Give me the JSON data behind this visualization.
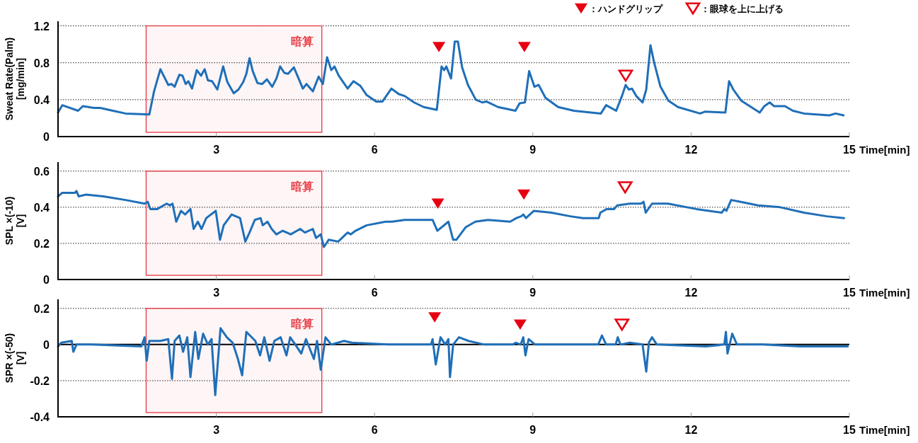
{
  "chart_data": [
    {
      "type": "line",
      "ylabel": "Sweat Rate(Palm) [mg/min]",
      "xlabel": "Time[min]",
      "xlim": [
        0,
        15
      ],
      "xticks": [
        3,
        6,
        9,
        12,
        15
      ],
      "ylim": [
        0,
        1.25
      ],
      "yticks": [
        0,
        0.4,
        0.8,
        1.2
      ],
      "grid": "y",
      "legend": "top right",
      "bands": [
        {
          "axis": "x",
          "from": 1.67,
          "to": 5.0,
          "label": "暗算",
          "color": "#e8414a"
        }
      ],
      "series": [
        {
          "type": "line",
          "color": "#1f6fb8",
          "x": [
            0.0,
            0.08,
            0.38,
            0.47,
            0.68,
            0.8,
            1.04,
            1.28,
            1.73,
            1.82,
            1.94,
            2.09,
            2.15,
            2.21,
            2.3,
            2.36,
            2.42,
            2.47,
            2.54,
            2.63,
            2.71,
            2.78,
            2.84,
            2.92,
            3.02,
            3.13,
            3.21,
            3.33,
            3.42,
            3.51,
            3.57,
            3.63,
            3.69,
            3.78,
            3.87,
            3.96,
            4.06,
            4.14,
            4.21,
            4.29,
            4.36,
            4.47,
            4.56,
            4.64,
            4.71,
            4.83,
            4.94,
            5.02,
            5.1,
            5.18,
            5.24,
            5.32,
            5.49,
            5.6,
            5.73,
            5.85,
            6.03,
            6.15,
            6.32,
            6.46,
            6.57,
            6.75,
            6.93,
            7.18,
            7.27,
            7.32,
            7.36,
            7.45,
            7.52,
            7.58,
            7.66,
            7.77,
            7.92,
            8.04,
            8.12,
            8.34,
            8.67,
            8.75,
            8.85,
            8.93,
            9.03,
            9.11,
            9.24,
            9.48,
            9.78,
            10.29,
            10.39,
            10.58,
            10.69,
            10.76,
            10.82,
            10.88,
            10.96,
            11.08,
            11.15,
            11.23,
            11.3,
            11.42,
            11.57,
            11.75,
            12.17,
            12.26,
            12.65,
            12.72,
            12.8,
            12.95,
            13.3,
            13.39,
            13.49,
            13.57,
            13.78,
            13.93,
            14.14,
            14.62,
            14.74,
            14.89
          ],
          "values": [
            0.26,
            0.34,
            0.28,
            0.33,
            0.31,
            0.31,
            0.28,
            0.25,
            0.24,
            0.49,
            0.73,
            0.56,
            0.57,
            0.54,
            0.67,
            0.66,
            0.57,
            0.6,
            0.52,
            0.72,
            0.66,
            0.73,
            0.61,
            0.6,
            0.51,
            0.76,
            0.59,
            0.47,
            0.51,
            0.59,
            0.68,
            0.85,
            0.71,
            0.58,
            0.57,
            0.62,
            0.54,
            0.63,
            0.76,
            0.69,
            0.68,
            0.75,
            0.63,
            0.52,
            0.57,
            0.49,
            0.65,
            0.57,
            0.86,
            0.72,
            0.76,
            0.66,
            0.52,
            0.6,
            0.55,
            0.45,
            0.38,
            0.38,
            0.52,
            0.46,
            0.44,
            0.37,
            0.32,
            0.29,
            0.76,
            0.72,
            0.76,
            0.63,
            1.03,
            1.03,
            0.75,
            0.56,
            0.4,
            0.37,
            0.38,
            0.32,
            0.28,
            0.36,
            0.37,
            0.71,
            0.54,
            0.56,
            0.42,
            0.32,
            0.28,
            0.25,
            0.34,
            0.28,
            0.44,
            0.56,
            0.51,
            0.52,
            0.44,
            0.37,
            0.51,
            0.99,
            0.8,
            0.54,
            0.39,
            0.32,
            0.25,
            0.27,
            0.26,
            0.6,
            0.51,
            0.39,
            0.26,
            0.33,
            0.37,
            0.33,
            0.33,
            0.28,
            0.25,
            0.23,
            0.25,
            0.23
          ]
        },
        {
          "type": "scatter",
          "name": "：ハンドグリップ",
          "color": "#e60012",
          "marker": "triangle",
          "x": [
            7.22,
            8.84
          ],
          "values": [
            0.97,
            0.97
          ]
        },
        {
          "type": "scatter",
          "name": "：眼球を上に上げる",
          "color": "#e60012",
          "marker": "triangle-open",
          "x": [
            10.76
          ],
          "values": [
            0.66
          ]
        }
      ]
    },
    {
      "type": "line",
      "ylabel": "SPL ×(-10) [V]",
      "xlabel": "Time[min]",
      "xlim": [
        0,
        15
      ],
      "xticks": [
        3,
        6,
        9,
        12,
        15
      ],
      "ylim": [
        0,
        0.65
      ],
      "yticks": [
        0,
        0.2,
        0.4,
        0.6
      ],
      "grid": "y",
      "bands": [
        {
          "axis": "x",
          "from": 1.67,
          "to": 5.0,
          "label": "暗算",
          "color": "#e8414a"
        }
      ],
      "series": [
        {
          "type": "line",
          "color": "#1f6fb8",
          "x": [
            0.0,
            0.08,
            0.32,
            0.35,
            0.39,
            0.53,
            0.86,
            1.28,
            1.64,
            1.7,
            1.75,
            1.88,
            2.06,
            2.12,
            2.17,
            2.24,
            2.33,
            2.41,
            2.51,
            2.57,
            2.65,
            2.72,
            2.81,
            2.99,
            3.07,
            3.14,
            3.29,
            3.45,
            3.55,
            3.63,
            3.73,
            3.84,
            3.88,
            3.97,
            4.05,
            4.14,
            4.26,
            4.41,
            4.59,
            4.68,
            4.83,
            4.89,
            4.98,
            5.04,
            5.13,
            5.31,
            5.49,
            5.55,
            5.64,
            5.85,
            6.21,
            6.33,
            6.57,
            7.1,
            7.19,
            7.4,
            7.49,
            7.55,
            7.73,
            7.91,
            8.15,
            8.57,
            8.69,
            8.78,
            8.82,
            8.87,
            9.02,
            9.35,
            9.71,
            9.95,
            10.25,
            10.28,
            10.4,
            10.54,
            10.6,
            10.84,
            11.05,
            11.1,
            11.14,
            11.26,
            11.56,
            12.1,
            12.58,
            12.63,
            12.67,
            12.76,
            12.94,
            13.27,
            13.69,
            14.14,
            14.57,
            14.9
          ],
          "values": [
            0.46,
            0.48,
            0.48,
            0.49,
            0.46,
            0.47,
            0.46,
            0.44,
            0.42,
            0.43,
            0.39,
            0.39,
            0.42,
            0.41,
            0.42,
            0.32,
            0.38,
            0.36,
            0.39,
            0.28,
            0.32,
            0.28,
            0.34,
            0.38,
            0.22,
            0.3,
            0.36,
            0.34,
            0.21,
            0.26,
            0.33,
            0.34,
            0.3,
            0.32,
            0.28,
            0.25,
            0.27,
            0.25,
            0.28,
            0.26,
            0.28,
            0.23,
            0.25,
            0.18,
            0.22,
            0.21,
            0.26,
            0.25,
            0.27,
            0.3,
            0.32,
            0.32,
            0.33,
            0.33,
            0.27,
            0.32,
            0.22,
            0.22,
            0.29,
            0.32,
            0.33,
            0.32,
            0.34,
            0.35,
            0.36,
            0.34,
            0.38,
            0.37,
            0.35,
            0.34,
            0.34,
            0.37,
            0.39,
            0.39,
            0.41,
            0.42,
            0.42,
            0.43,
            0.37,
            0.42,
            0.42,
            0.39,
            0.37,
            0.39,
            0.38,
            0.44,
            0.43,
            0.41,
            0.4,
            0.37,
            0.35,
            0.34
          ]
        },
        {
          "type": "scatter",
          "color": "#e60012",
          "marker": "triangle",
          "x": [
            7.2,
            8.83
          ],
          "values": [
            0.42,
            0.47
          ]
        },
        {
          "type": "scatter",
          "color": "#e60012",
          "marker": "triangle-open",
          "x": [
            10.75
          ],
          "values": [
            0.51
          ]
        }
      ]
    },
    {
      "type": "line",
      "ylabel": "SPR ×(-50) [V]",
      "xlabel": "Time[min]",
      "xlim": [
        0,
        15
      ],
      "xticks": [
        3,
        6,
        9,
        12,
        15
      ],
      "ylim": [
        -0.4,
        0.25
      ],
      "yticks": [
        -0.4,
        -0.2,
        0,
        0.2
      ],
      "grid": "y",
      "ref_lines": [
        {
          "axis": "y",
          "value": 0,
          "color": "#000000"
        }
      ],
      "bands": [
        {
          "axis": "x",
          "from": 1.67,
          "to": 5.0,
          "label": "暗算",
          "color": "#e8414a"
        }
      ],
      "series": [
        {
          "type": "line",
          "color": "#1f6fb8",
          "x": [
            0.0,
            0.06,
            0.26,
            0.29,
            0.35,
            0.62,
            1.58,
            1.64,
            1.68,
            1.73,
            1.94,
            2.09,
            2.16,
            2.21,
            2.3,
            2.37,
            2.45,
            2.51,
            2.6,
            2.66,
            2.75,
            2.84,
            2.91,
            2.98,
            3.08,
            3.2,
            3.31,
            3.41,
            3.49,
            3.57,
            3.74,
            3.83,
            3.91,
            4.01,
            4.1,
            4.22,
            4.33,
            4.4,
            4.52,
            4.61,
            4.7,
            4.85,
            4.91,
            4.98,
            5.07,
            5.18,
            5.42,
            5.57,
            6.26,
            7.07,
            7.1,
            7.16,
            7.25,
            7.34,
            7.4,
            7.43,
            7.49,
            7.6,
            7.78,
            8.08,
            8.62,
            8.68,
            8.77,
            8.82,
            8.86,
            8.92,
            9.04,
            10.24,
            10.31,
            10.39,
            10.57,
            10.61,
            10.66,
            10.84,
            11.08,
            11.15,
            11.2,
            11.26,
            11.35,
            12.28,
            12.63,
            12.66,
            12.69,
            12.78,
            12.87,
            13.35,
            14.07,
            14.97
          ],
          "values": [
            -0.01,
            0.01,
            0.02,
            -0.04,
            0.0,
            0.0,
            -0.01,
            0.04,
            -0.09,
            0.02,
            0.02,
            0.03,
            -0.19,
            0.02,
            0.05,
            -0.04,
            0.04,
            -0.18,
            0.07,
            -0.08,
            0.06,
            0.0,
            0.03,
            -0.28,
            0.09,
            0.04,
            0.01,
            -0.08,
            -0.17,
            0.07,
            0.02,
            -0.06,
            0.04,
            -0.09,
            0.02,
            0.04,
            -0.06,
            0.04,
            -0.01,
            -0.05,
            0.03,
            -0.08,
            0.02,
            -0.14,
            0.04,
            0.0,
            0.02,
            0.01,
            0.0,
            0.0,
            0.03,
            -0.11,
            0.04,
            0.0,
            0.03,
            -0.18,
            0.0,
            0.04,
            0.02,
            0.0,
            0.0,
            0.01,
            0.0,
            0.04,
            -0.06,
            0.03,
            0.0,
            0.0,
            0.05,
            0.0,
            0.0,
            0.04,
            0.0,
            0.01,
            0.0,
            -0.15,
            0.01,
            0.04,
            0.0,
            -0.01,
            0.0,
            0.07,
            -0.05,
            0.06,
            0.0,
            0.0,
            -0.01,
            -0.01
          ]
        },
        {
          "type": "scatter",
          "color": "#e60012",
          "marker": "triangle",
          "x": [
            7.14,
            8.76
          ],
          "values": [
            0.15,
            0.11
          ]
        },
        {
          "type": "scatter",
          "color": "#e60012",
          "marker": "triangle-open",
          "x": [
            10.69
          ],
          "values": [
            0.11
          ]
        }
      ]
    }
  ]
}
